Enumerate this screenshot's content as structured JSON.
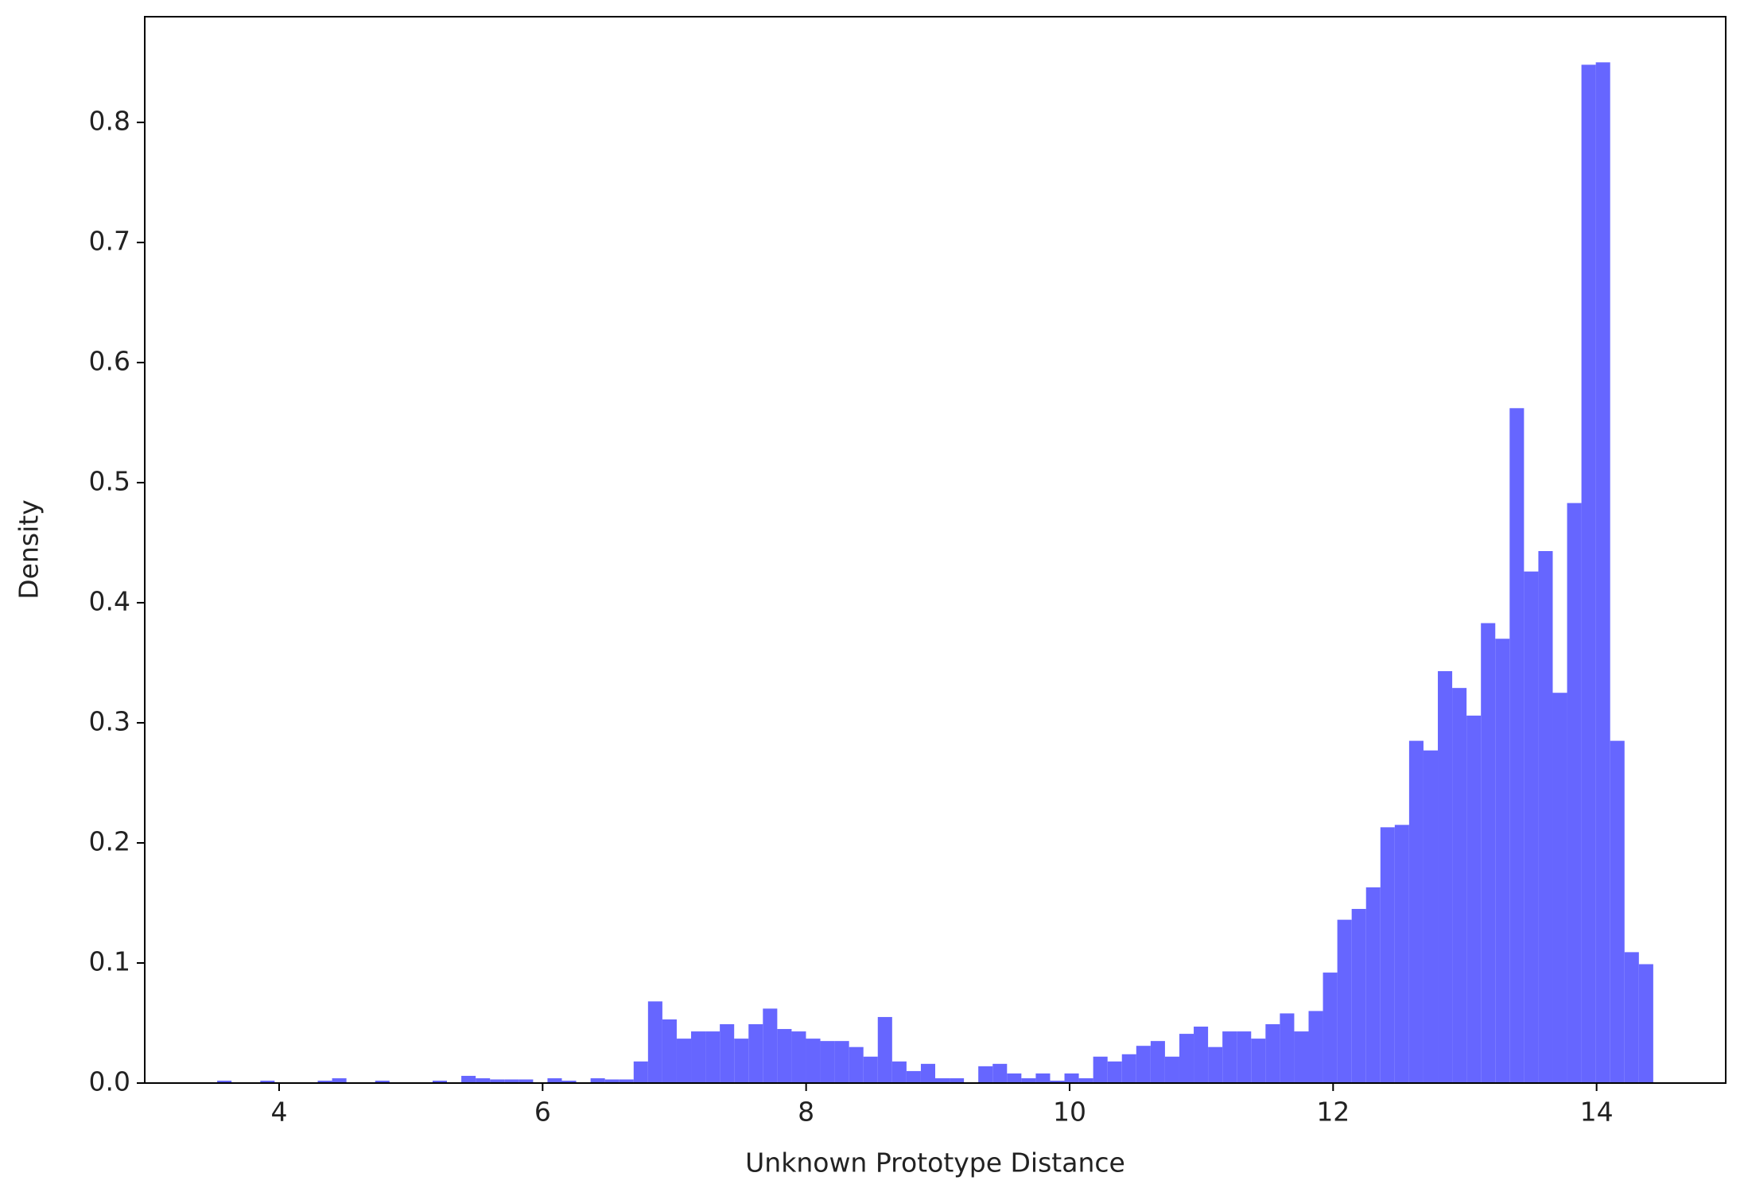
{
  "chart_data": {
    "type": "histogram",
    "x_label": "Unknown Prototype Distance",
    "y_label": "Density",
    "color": "#6666ff",
    "bins": [
      3.53,
      3.639,
      3.748,
      3.857,
      3.966,
      4.075,
      4.184,
      4.293,
      4.402,
      4.511,
      4.62,
      4.729,
      4.838,
      4.947,
      5.056,
      5.165,
      5.274,
      5.383,
      5.492,
      5.601,
      5.71,
      5.819,
      5.928,
      6.037,
      6.146,
      6.255,
      6.364,
      6.473,
      6.582,
      6.691,
      6.8,
      6.909,
      7.018,
      7.127,
      7.236,
      7.345,
      7.454,
      7.563,
      7.672,
      7.781,
      7.89,
      7.999,
      8.108,
      8.217,
      8.326,
      8.435,
      8.544,
      8.653,
      8.762,
      8.871,
      8.98,
      9.089,
      9.198,
      9.307,
      9.416,
      9.525,
      9.634,
      9.743,
      9.852,
      9.961,
      10.07,
      10.179,
      10.288,
      10.397,
      10.506,
      10.615,
      10.724,
      10.833,
      10.942,
      11.051,
      11.16,
      11.269,
      11.378,
      11.487,
      11.596,
      11.705,
      11.814,
      11.923,
      12.032,
      12.141,
      12.25,
      12.359,
      12.468,
      12.577,
      12.686,
      12.795,
      12.904,
      13.013,
      13.122,
      13.231,
      13.34,
      13.449,
      13.558,
      13.667,
      13.776,
      13.885,
      13.994,
      14.103,
      14.212,
      14.321,
      14.43
    ],
    "counts": [
      0.002,
      0,
      0,
      0.002,
      0,
      0,
      0,
      0.002,
      0.004,
      0,
      0,
      0.002,
      0,
      0,
      0,
      0.002,
      0,
      0.006,
      0.004,
      0.003,
      0.003,
      0.003,
      0,
      0.004,
      0.002,
      0,
      0.004,
      0.003,
      0.003,
      0.018,
      0.068,
      0.053,
      0.037,
      0.043,
      0.043,
      0.049,
      0.037,
      0.049,
      0.062,
      0.045,
      0.043,
      0.037,
      0.035,
      0.035,
      0.03,
      0.022,
      0.055,
      0.018,
      0.01,
      0.016,
      0.004,
      0.004,
      0,
      0.014,
      0.016,
      0.008,
      0.004,
      0.008,
      0.002,
      0.008,
      0.004,
      0.022,
      0.018,
      0.024,
      0.031,
      0.035,
      0.022,
      0.041,
      0.047,
      0.03,
      0.043,
      0.043,
      0.037,
      0.049,
      0.058,
      0.043,
      0.06,
      0.092,
      0.136,
      0.145,
      0.163,
      0.213,
      0.215,
      0.285,
      0.277,
      0.343,
      0.329,
      0.306,
      0.383,
      0.37,
      0.562,
      0.426,
      0.443,
      0.325,
      0.483,
      0.848,
      0.85,
      0.285,
      0.109,
      0.099
    ],
    "xlim": [
      2.98,
      14.98
    ],
    "ylim": [
      0,
      0.888
    ],
    "xticks": [
      4,
      6,
      8,
      10,
      12,
      14
    ],
    "yticks": [
      {
        "value": 0,
        "label": "0.0"
      },
      0.1,
      0.2,
      0.3,
      0.4,
      0.5,
      0.6,
      0.7,
      0.8
    ]
  }
}
